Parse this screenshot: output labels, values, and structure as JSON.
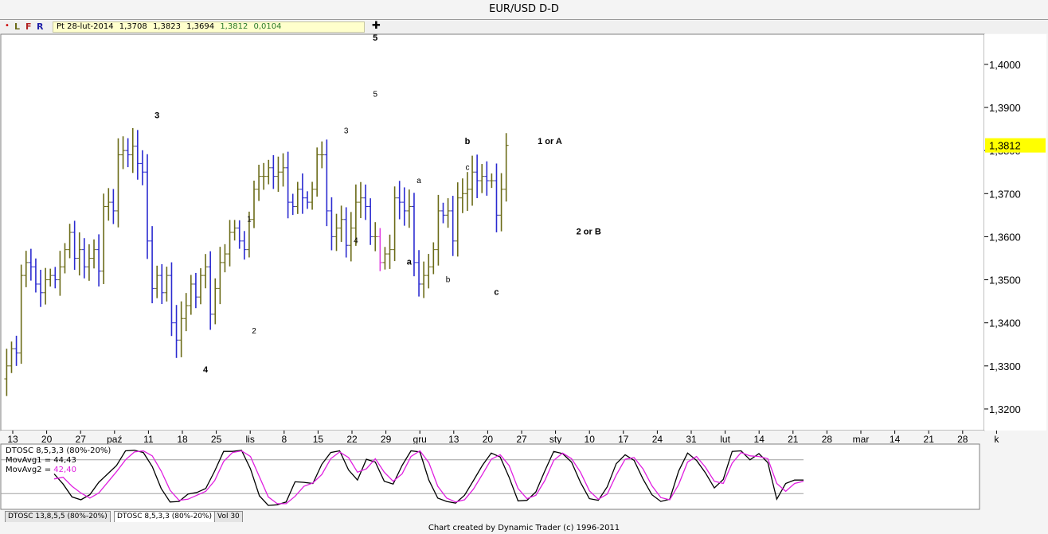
{
  "title": "EUR/USD D-D",
  "toolbar": {
    "dot": "•",
    "modes": [
      {
        "label": "L",
        "color": "#6b6b18"
      },
      {
        "label": "F",
        "color": "#b22222"
      },
      {
        "label": "R",
        "color": "#1f1fa8"
      }
    ],
    "ohlc": [
      "Pt 28-lut-2014",
      "1,3708",
      "1,3823",
      "1,3694",
      "1,3812",
      "0,0104"
    ],
    "plus": "✚"
  },
  "colors": {
    "up": "#6b6b18",
    "down": "#2b2bd0",
    "accent": "#e040e0",
    "priceTag": "#ffff00",
    "osc1": "#000000",
    "osc2": "#e020e0"
  },
  "chart_data": [
    {
      "type": "bar",
      "subtype": "ohlc",
      "title": "EUR/USD D-D",
      "ylim": [
        1.315,
        1.407
      ],
      "yticks": [
        "1,3200",
        "1,3300",
        "1,3400",
        "1,3500",
        "1,3600",
        "1,3700",
        "1,3800",
        "1,3900",
        "1,4000"
      ],
      "ytick_values": [
        1.32,
        1.33,
        1.34,
        1.35,
        1.36,
        1.37,
        1.38,
        1.39,
        1.4
      ],
      "last_price_label": "1,3812",
      "last_price": 1.3812,
      "xticks": [
        "13",
        "20",
        "27",
        "paź",
        "11",
        "18",
        "25",
        "lis",
        "8",
        "15",
        "22",
        "29",
        "gru",
        "13",
        "20",
        "27",
        "sty",
        "10",
        "17",
        "24",
        "31",
        "lut",
        "14",
        "21",
        "28",
        "mar",
        "14",
        "21",
        "28",
        "k"
      ],
      "closes": [
        1.33,
        1.334,
        1.333,
        1.351,
        1.354,
        1.353,
        1.349,
        1.347,
        1.35,
        1.351,
        1.35,
        1.353,
        1.357,
        1.361,
        1.355,
        1.357,
        1.353,
        1.355,
        1.357,
        1.352,
        1.367,
        1.368,
        1.366,
        1.379,
        1.38,
        1.379,
        1.381,
        1.377,
        1.375,
        1.359,
        1.348,
        1.351,
        1.347,
        1.351,
        1.34,
        1.336,
        1.341,
        1.344,
        1.349,
        1.346,
        1.351,
        1.353,
        1.342,
        1.348,
        1.354,
        1.356,
        1.361,
        1.362,
        1.359,
        1.357,
        1.364,
        1.371,
        1.374,
        1.374,
        1.376,
        1.374,
        1.375,
        1.376,
        1.368,
        1.367,
        1.371,
        1.369,
        1.368,
        1.371,
        1.379,
        1.379,
        1.366,
        1.36,
        1.362,
        1.364,
        1.358,
        1.362,
        1.368,
        1.369,
        1.367,
        1.36,
        1.36,
        1.354,
        1.356,
        1.357,
        1.369,
        1.368,
        1.366,
        1.367,
        1.354,
        1.349,
        1.351,
        1.353,
        1.357,
        1.366,
        1.365,
        1.366,
        1.359,
        1.369,
        1.37,
        1.371,
        1.375,
        1.373,
        1.374,
        1.373,
        1.373,
        1.365,
        1.371,
        1.3812
      ],
      "annotations": [
        {
          "text": "3",
          "x": 31,
          "y": 1.3875,
          "bold": true
        },
        {
          "text": "4",
          "x": 41,
          "y": 1.3285,
          "bold": true
        },
        {
          "text": "1",
          "x": 50,
          "y": 1.3635,
          "bold": false
        },
        {
          "text": "2",
          "x": 51,
          "y": 1.3375,
          "bold": false
        },
        {
          "text": "3",
          "x": 70,
          "y": 1.384,
          "bold": false
        },
        {
          "text": "4",
          "x": 72,
          "y": 1.3585,
          "bold": false
        },
        {
          "text": "5",
          "x": 76,
          "y": 1.4055,
          "bold": true
        },
        {
          "text": "5",
          "x": 76,
          "y": 1.3925,
          "bold": false
        },
        {
          "text": "a",
          "x": 85,
          "y": 1.3725,
          "bold": false
        },
        {
          "text": "a",
          "x": 83,
          "y": 1.3535,
          "bold": true
        },
        {
          "text": "b",
          "x": 91,
          "y": 1.3495,
          "bold": false
        },
        {
          "text": "b",
          "x": 95,
          "y": 1.3815,
          "bold": true
        },
        {
          "text": "c",
          "x": 95,
          "y": 1.3755,
          "bold": false
        },
        {
          "text": "c",
          "x": 101,
          "y": 1.3465,
          "bold": true
        },
        {
          "text": "1 or A",
          "x": 112,
          "y": 1.3815,
          "bold": true
        },
        {
          "text": "2 or B",
          "x": 120,
          "y": 1.3605,
          "bold": true
        }
      ]
    },
    {
      "type": "line",
      "title": "DTOSC 8,5,3,3 (80%-20%)",
      "ylim": [
        -8,
        108
      ],
      "levels": [
        80,
        20
      ],
      "series": [
        {
          "name": "MovAvg1",
          "label": "MovAvg1 = 44,43",
          "value_text": "44,43",
          "values": [
            55,
            37,
            14,
            9,
            18,
            40,
            55,
            70,
            96,
            97,
            93,
            68,
            29,
            5,
            6,
            19,
            22,
            29,
            60,
            95,
            95,
            97,
            64,
            16,
            -1,
            0,
            5,
            41,
            40,
            38,
            72,
            93,
            96,
            62,
            44,
            81,
            76,
            42,
            37,
            70,
            96,
            94,
            44,
            12,
            6,
            3,
            17,
            43,
            70,
            92,
            85,
            49,
            7,
            8,
            23,
            60,
            95,
            91,
            76,
            40,
            11,
            8,
            32,
            73,
            89,
            79,
            46,
            18,
            6,
            10,
            60,
            92,
            79,
            57,
            30,
            45,
            95,
            96,
            80,
            91,
            75,
            10,
            38,
            44,
            44
          ]
        },
        {
          "name": "MovAvg2",
          "label": "MovAvg2 = 42,40",
          "value_text": "42,40",
          "values": [
            46,
            49,
            33,
            21,
            12,
            21,
            40,
            59,
            80,
            94,
            96,
            87,
            60,
            26,
            8,
            10,
            17,
            24,
            43,
            77,
            93,
            96,
            86,
            50,
            14,
            2,
            2,
            15,
            33,
            39,
            54,
            82,
            94,
            84,
            58,
            64,
            82,
            58,
            42,
            55,
            86,
            96,
            75,
            33,
            12,
            5,
            9,
            28,
            54,
            81,
            89,
            70,
            29,
            11,
            17,
            43,
            79,
            92,
            82,
            58,
            25,
            10,
            19,
            53,
            81,
            84,
            64,
            34,
            13,
            9,
            36,
            76,
            86,
            67,
            42,
            38,
            74,
            93,
            87,
            86,
            82,
            38,
            24,
            38,
            42
          ]
        }
      ]
    }
  ],
  "tabs": [
    "DTOSC 13,8,5,5 (80%-20%)",
    "DTOSC 8,5,3,3 (80%-20%)",
    "Vol 30"
  ],
  "credit": "Chart created by Dynamic Trader  (c) 1996-2011"
}
